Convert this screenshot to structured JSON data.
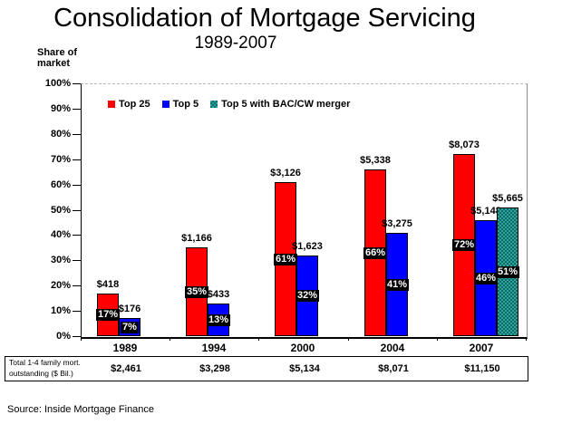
{
  "source_note": "Source: Inside Mortgage Finance",
  "chart_data": {
    "type": "bar",
    "title": "Consolidation of Mortgage Servicing",
    "subtitle": "1989-2007",
    "ylabel": "Share of\nmarket",
    "xlabel": "",
    "ylim": [
      0,
      100
    ],
    "ytick_step": 10,
    "ytick_suffix": "%",
    "grid": false,
    "legend_position": "top-inside",
    "categories": [
      "1989",
      "1994",
      "2000",
      "2004",
      "2007"
    ],
    "series": [
      {
        "name": "Top 25",
        "color": "#ff0000",
        "pattern": "solid",
        "values": [
          17,
          35,
          61,
          66,
          72
        ],
        "bar_labels": [
          "17%",
          "35%",
          "61%",
          "66%",
          "72%"
        ],
        "value_labels": [
          "$418",
          "$1,166",
          "$3,126",
          "$5,338",
          "$8,073"
        ]
      },
      {
        "name": "Top 5",
        "color": "#0000fe",
        "pattern": "solid",
        "values": [
          7,
          13,
          32,
          41,
          46
        ],
        "bar_labels": [
          "7%",
          "13%",
          "32%",
          "41%",
          "46%"
        ],
        "value_labels": [
          "$176",
          "$433",
          "$1,623",
          "$3,275",
          "$5,148"
        ]
      },
      {
        "name": "Top 5 with BAC/CW merger",
        "color": "#1a8a84",
        "pattern": "checker",
        "values": [
          null,
          null,
          null,
          null,
          51
        ],
        "bar_labels": [
          null,
          null,
          null,
          null,
          "51%"
        ],
        "value_labels": [
          null,
          null,
          null,
          null,
          "$5,665"
        ]
      }
    ],
    "footer_table": {
      "label": "Total 1-4 family mort.\noutstanding ($ Bil.)",
      "values": [
        "$2,461",
        "$3,298",
        "$5,134",
        "$8,071",
        "$11,150"
      ]
    }
  }
}
